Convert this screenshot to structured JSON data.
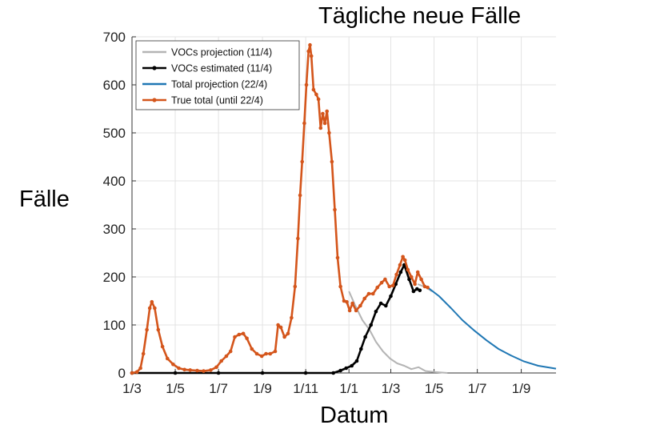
{
  "chart_data": {
    "type": "line",
    "title": "Tägliche neue Fälle",
    "xlabel": "Datum",
    "ylabel": "Fälle",
    "x_ticks": [
      "1/3",
      "1/5",
      "1/7",
      "1/9",
      "1/11",
      "1/1",
      "1/3",
      "1/5",
      "1/7",
      "1/9"
    ],
    "y_ticks": [
      "0",
      "100",
      "200",
      "300",
      "400",
      "500",
      "600",
      "700"
    ],
    "ylim": [
      0,
      700
    ],
    "xlim": [
      "2020-03-01",
      "2021-10-20"
    ],
    "grid": true,
    "legend_position": "top-left",
    "series": [
      {
        "name": "VOCs projection (11/4)",
        "color": "#b4b4b4",
        "markers": false,
        "points": [
          [
            "2021-01-01",
            170
          ],
          [
            "2021-01-10",
            140
          ],
          [
            "2021-01-20",
            110
          ],
          [
            "2021-01-30",
            90
          ],
          [
            "2021-02-08",
            65
          ],
          [
            "2021-02-18",
            45
          ],
          [
            "2021-02-28",
            30
          ],
          [
            "2021-03-10",
            20
          ],
          [
            "2021-03-20",
            15
          ],
          [
            "2021-03-30",
            8
          ],
          [
            "2021-04-09",
            12
          ],
          [
            "2021-04-19",
            4
          ],
          [
            "2021-05-01",
            2
          ],
          [
            "2021-05-20",
            0
          ],
          [
            "2021-04-08",
            185
          ],
          [
            "2021-04-20",
            178
          ],
          [
            "2021-04-28",
            170
          ]
        ]
      },
      {
        "name": "VOCs estimated (11/4)",
        "color": "#000000",
        "markers": true,
        "points": [
          [
            "2020-03-01",
            0
          ],
          [
            "2020-05-01",
            0
          ],
          [
            "2020-07-01",
            0
          ],
          [
            "2020-09-01",
            0
          ],
          [
            "2020-11-01",
            0
          ],
          [
            "2020-12-10",
            0
          ],
          [
            "2020-12-20",
            5
          ],
          [
            "2020-12-28",
            10
          ],
          [
            "2021-01-05",
            15
          ],
          [
            "2021-01-12",
            25
          ],
          [
            "2021-01-18",
            50
          ],
          [
            "2021-01-24",
            75
          ],
          [
            "2021-02-01",
            100
          ],
          [
            "2021-02-08",
            128
          ],
          [
            "2021-02-15",
            145
          ],
          [
            "2021-02-22",
            140
          ],
          [
            "2021-03-01",
            160
          ],
          [
            "2021-03-08",
            185
          ],
          [
            "2021-03-15",
            210
          ],
          [
            "2021-03-20",
            225
          ],
          [
            "2021-03-27",
            195
          ],
          [
            "2021-04-02",
            170
          ],
          [
            "2021-04-07",
            175
          ],
          [
            "2021-04-11",
            172
          ]
        ]
      },
      {
        "name": "Total projection (22/4)",
        "color": "#1f77b4",
        "markers": false,
        "points": [
          [
            "2021-04-22",
            178
          ],
          [
            "2021-05-08",
            160
          ],
          [
            "2021-05-25",
            135
          ],
          [
            "2021-06-10",
            110
          ],
          [
            "2021-06-27",
            88
          ],
          [
            "2021-07-14",
            68
          ],
          [
            "2021-07-31",
            50
          ],
          [
            "2021-08-18",
            36
          ],
          [
            "2021-09-05",
            24
          ],
          [
            "2021-09-25",
            15
          ],
          [
            "2021-10-20",
            9
          ]
        ]
      },
      {
        "name": "True total (until 22/4)",
        "color": "#d4551b",
        "markers": true,
        "points": [
          [
            "2020-03-01",
            0
          ],
          [
            "2020-03-08",
            2
          ],
          [
            "2020-03-13",
            10
          ],
          [
            "2020-03-17",
            40
          ],
          [
            "2020-03-22",
            90
          ],
          [
            "2020-03-26",
            135
          ],
          [
            "2020-03-29",
            148
          ],
          [
            "2020-04-02",
            135
          ],
          [
            "2020-04-07",
            90
          ],
          [
            "2020-04-13",
            55
          ],
          [
            "2020-04-20",
            30
          ],
          [
            "2020-04-28",
            18
          ],
          [
            "2020-05-06",
            10
          ],
          [
            "2020-05-14",
            7
          ],
          [
            "2020-05-22",
            6
          ],
          [
            "2020-06-01",
            5
          ],
          [
            "2020-06-10",
            4
          ],
          [
            "2020-06-20",
            6
          ],
          [
            "2020-06-28",
            12
          ],
          [
            "2020-07-05",
            25
          ],
          [
            "2020-07-12",
            35
          ],
          [
            "2020-07-18",
            45
          ],
          [
            "2020-07-24",
            75
          ],
          [
            "2020-07-30",
            80
          ],
          [
            "2020-08-05",
            82
          ],
          [
            "2020-08-10",
            72
          ],
          [
            "2020-08-17",
            50
          ],
          [
            "2020-08-24",
            40
          ],
          [
            "2020-08-31",
            35
          ],
          [
            "2020-09-06",
            40
          ],
          [
            "2020-09-12",
            40
          ],
          [
            "2020-09-19",
            45
          ],
          [
            "2020-09-23",
            100
          ],
          [
            "2020-09-27",
            95
          ],
          [
            "2020-10-02",
            75
          ],
          [
            "2020-10-07",
            82
          ],
          [
            "2020-10-12",
            115
          ],
          [
            "2020-10-17",
            180
          ],
          [
            "2020-10-21",
            280
          ],
          [
            "2020-10-24",
            370
          ],
          [
            "2020-10-27",
            440
          ],
          [
            "2020-10-30",
            520
          ],
          [
            "2020-11-02",
            600
          ],
          [
            "2020-11-05",
            670
          ],
          [
            "2020-11-07",
            683
          ],
          [
            "2020-11-09",
            660
          ],
          [
            "2020-11-12",
            590
          ],
          [
            "2020-11-16",
            580
          ],
          [
            "2020-11-19",
            570
          ],
          [
            "2020-11-22",
            510
          ],
          [
            "2020-11-25",
            540
          ],
          [
            "2020-11-28",
            520
          ],
          [
            "2020-12-01",
            545
          ],
          [
            "2020-12-04",
            500
          ],
          [
            "2020-12-08",
            440
          ],
          [
            "2020-12-12",
            340
          ],
          [
            "2020-12-16",
            240
          ],
          [
            "2020-12-20",
            180
          ],
          [
            "2020-12-25",
            150
          ],
          [
            "2020-12-29",
            148
          ],
          [
            "2021-01-02",
            130
          ],
          [
            "2021-01-06",
            145
          ],
          [
            "2021-01-11",
            130
          ],
          [
            "2021-01-17",
            140
          ],
          [
            "2021-01-23",
            155
          ],
          [
            "2021-01-29",
            165
          ],
          [
            "2021-02-04",
            165
          ],
          [
            "2021-02-10",
            178
          ],
          [
            "2021-02-16",
            188
          ],
          [
            "2021-02-21",
            195
          ],
          [
            "2021-02-27",
            180
          ],
          [
            "2021-03-04",
            182
          ],
          [
            "2021-03-09",
            205
          ],
          [
            "2021-03-14",
            225
          ],
          [
            "2021-03-18",
            242
          ],
          [
            "2021-03-21",
            235
          ],
          [
            "2021-03-25",
            215
          ],
          [
            "2021-03-30",
            200
          ],
          [
            "2021-04-04",
            185
          ],
          [
            "2021-04-08",
            210
          ],
          [
            "2021-04-13",
            195
          ],
          [
            "2021-04-18",
            180
          ],
          [
            "2021-04-22",
            178
          ]
        ]
      }
    ]
  }
}
